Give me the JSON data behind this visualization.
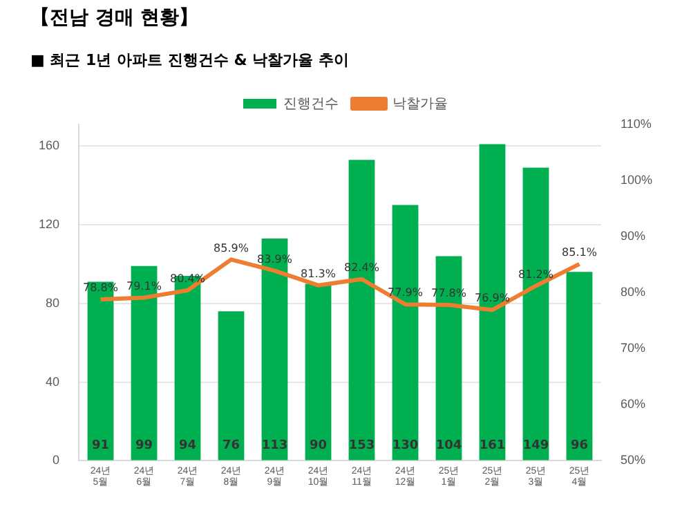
{
  "chart_data": {
    "type": "bar",
    "title": "【전남 경매 현황】",
    "subtitle": "■ 최근 1년 아파트 진행건수 & 낙찰가율 추이",
    "categories": [
      "24년 5월",
      "24년 6월",
      "24년 7월",
      "24년 8월",
      "24년 9월",
      "24년 10월",
      "24년 11월",
      "24년 12월",
      "25년 1월",
      "25년 2월",
      "25년 3월",
      "25년 4월"
    ],
    "series": [
      {
        "name": "진행건수",
        "color": "#00b050",
        "values": [
          91,
          99,
          94,
          76,
          113,
          90,
          153,
          130,
          104,
          161,
          149,
          96
        ]
      },
      {
        "name": "낙찰가율",
        "type": "line",
        "axis": "y2",
        "color": "#ed7d31",
        "marker": "none",
        "values": [
          78.8,
          79.1,
          80.4,
          85.9,
          83.9,
          81.3,
          82.4,
          77.9,
          77.8,
          76.9,
          81.2,
          85.1
        ],
        "value_labels": [
          "78.8%",
          "79.1%",
          "80.4%",
          "85.9%",
          "83.9%",
          "81.3%",
          "82.4%",
          "77.9%",
          "77.8%",
          "76.9%",
          "81.2%",
          "85.1%"
        ]
      }
    ],
    "ylim": [
      0,
      171
    ],
    "yticks": [
      0,
      40,
      80,
      120,
      160
    ],
    "y2lim": [
      50,
      110
    ],
    "y2ticks": [
      {
        "value": 50,
        "label": "50%"
      },
      {
        "value": 60,
        "label": "60%"
      },
      {
        "value": 70,
        "label": "70%"
      },
      {
        "value": 80,
        "label": "80%"
      },
      {
        "value": 90,
        "label": "90%"
      },
      {
        "value": 100,
        "label": "100%"
      },
      {
        "value": 110,
        "label": "110%"
      }
    ],
    "grid": "y",
    "legend": "top",
    "data_labels": true
  }
}
